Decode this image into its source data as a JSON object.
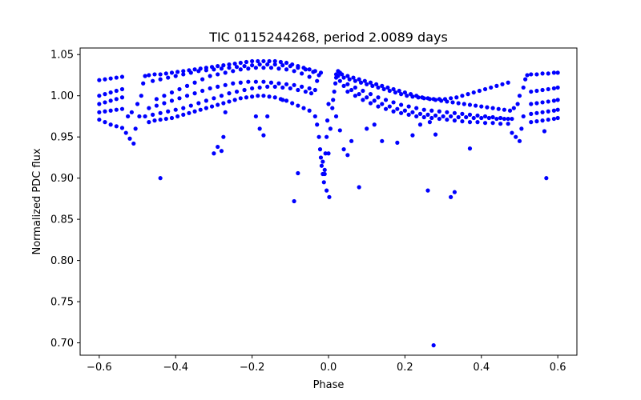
{
  "chart_data": {
    "type": "scatter",
    "title": "TIC 0115244268, period 2.0089 days",
    "xlabel": "Phase",
    "ylabel": "Normalized PDC flux",
    "xlim": [
      -0.65,
      0.65
    ],
    "ylim": [
      0.685,
      1.058
    ],
    "xticks": [
      -0.6,
      -0.4,
      -0.2,
      0.0,
      0.2,
      0.4,
      0.6
    ],
    "xtick_labels": [
      "−0.6",
      "−0.4",
      "−0.2",
      "0.0",
      "0.2",
      "0.4",
      "0.6"
    ],
    "yticks": [
      0.7,
      0.75,
      0.8,
      0.85,
      0.9,
      0.95,
      1.0,
      1.05
    ],
    "ytick_labels": [
      "0.70",
      "0.75",
      "0.80",
      "0.85",
      "0.90",
      "0.95",
      "1.00",
      "1.05"
    ],
    "grid": false,
    "marker_color": "#0000ff",
    "series": [
      {
        "x": [
          -0.6,
          -0.585,
          -0.57,
          -0.555,
          -0.54,
          -0.6,
          -0.585,
          -0.57,
          -0.555,
          -0.54,
          -0.6,
          -0.585,
          -0.57,
          -0.555,
          -0.54,
          -0.6,
          -0.585,
          -0.57,
          -0.555,
          -0.54,
          -0.6,
          -0.585,
          -0.57,
          -0.555,
          -0.54,
          -0.53,
          -0.52,
          -0.51,
          -0.505,
          -0.495,
          -0.525,
          -0.515,
          -0.5,
          -0.49,
          -0.485,
          -0.48,
          -0.47,
          -0.455,
          -0.44,
          -0.425,
          -0.41,
          -0.395,
          -0.38,
          -0.365,
          -0.35,
          -0.335,
          -0.32,
          -0.305,
          -0.29,
          -0.275,
          -0.26,
          -0.245,
          -0.23,
          -0.215,
          -0.2,
          -0.185,
          -0.17,
          -0.155,
          -0.14,
          -0.125,
          -0.11,
          -0.095,
          -0.08,
          -0.065,
          -0.05,
          -0.035,
          -0.02,
          -0.46,
          -0.44,
          -0.42,
          -0.4,
          -0.38,
          -0.36,
          -0.34,
          -0.32,
          -0.3,
          -0.28,
          -0.26,
          -0.24,
          -0.22,
          -0.2,
          -0.18,
          -0.16,
          -0.14,
          -0.12,
          -0.1,
          -0.08,
          -0.06,
          -0.04,
          -0.025,
          -0.45,
          -0.43,
          -0.41,
          -0.39,
          -0.37,
          -0.35,
          -0.33,
          -0.31,
          -0.29,
          -0.27,
          -0.25,
          -0.23,
          -0.21,
          -0.19,
          -0.17,
          -0.15,
          -0.13,
          -0.11,
          -0.09,
          -0.07,
          -0.05,
          -0.03,
          -0.47,
          -0.45,
          -0.43,
          -0.41,
          -0.39,
          -0.37,
          -0.35,
          -0.33,
          -0.31,
          -0.29,
          -0.27,
          -0.25,
          -0.23,
          -0.21,
          -0.19,
          -0.17,
          -0.15,
          -0.13,
          -0.11,
          -0.09,
          -0.07,
          -0.05,
          -0.035,
          -0.48,
          -0.46,
          -0.44,
          -0.42,
          -0.4,
          -0.38,
          -0.36,
          -0.34,
          -0.32,
          -0.3,
          -0.28,
          -0.26,
          -0.24,
          -0.22,
          -0.2,
          -0.18,
          -0.16,
          -0.14,
          -0.12,
          -0.1,
          -0.08,
          -0.06,
          -0.045,
          -0.47,
          -0.455,
          -0.44,
          -0.425,
          -0.41,
          -0.395,
          -0.38,
          -0.365,
          -0.35,
          -0.335,
          -0.32,
          -0.305,
          -0.29,
          -0.275,
          -0.26,
          -0.245,
          -0.23,
          -0.215,
          -0.2,
          -0.185,
          -0.17,
          -0.155,
          -0.14,
          -0.125,
          -0.11,
          -0.095,
          -0.08,
          -0.065,
          -0.05,
          -0.035,
          -0.03,
          -0.025,
          -0.022,
          -0.02,
          -0.018,
          -0.015,
          -0.012,
          -0.01,
          -0.008,
          -0.005,
          -0.003,
          0.0,
          -0.015,
          -0.01,
          -0.005,
          0.002,
          0.0,
          0.005,
          0.01,
          0.012,
          0.015,
          0.018,
          0.02,
          0.025,
          0.03,
          0.02,
          0.035,
          0.05,
          0.065,
          0.08,
          0.095,
          0.11,
          0.125,
          0.14,
          0.155,
          0.17,
          0.185,
          0.2,
          0.215,
          0.23,
          0.245,
          0.26,
          0.275,
          0.29,
          0.305,
          0.32,
          0.335,
          0.35,
          0.365,
          0.38,
          0.395,
          0.41,
          0.425,
          0.44,
          0.455,
          0.47,
          0.025,
          0.04,
          0.055,
          0.07,
          0.085,
          0.1,
          0.115,
          0.13,
          0.145,
          0.16,
          0.175,
          0.19,
          0.205,
          0.22,
          0.235,
          0.25,
          0.265,
          0.28,
          0.295,
          0.31,
          0.325,
          0.34,
          0.355,
          0.37,
          0.385,
          0.4,
          0.415,
          0.43,
          0.445,
          0.46,
          0.475,
          0.03,
          0.05,
          0.07,
          0.09,
          0.11,
          0.13,
          0.15,
          0.17,
          0.19,
          0.21,
          0.23,
          0.25,
          0.27,
          0.29,
          0.31,
          0.33,
          0.35,
          0.37,
          0.39,
          0.41,
          0.43,
          0.45,
          0.47,
          0.04,
          0.06,
          0.08,
          0.1,
          0.12,
          0.14,
          0.16,
          0.18,
          0.2,
          0.22,
          0.24,
          0.26,
          0.28,
          0.3,
          0.32,
          0.34,
          0.36,
          0.38,
          0.4,
          0.42,
          0.44,
          0.46,
          0.48,
          0.05,
          0.07,
          0.09,
          0.11,
          0.13,
          0.15,
          0.17,
          0.19,
          0.21,
          0.23,
          0.25,
          0.27,
          0.29,
          0.31,
          0.33,
          0.35,
          0.37,
          0.39,
          0.41,
          0.43,
          0.45,
          0.47,
          0.48,
          0.49,
          0.5,
          0.505,
          0.51,
          0.485,
          0.495,
          0.5,
          0.51,
          0.515,
          0.52,
          0.53,
          0.545,
          0.56,
          0.575,
          0.59,
          0.6,
          0.53,
          0.545,
          0.56,
          0.575,
          0.59,
          0.6,
          0.53,
          0.545,
          0.56,
          0.575,
          0.59,
          0.6,
          0.53,
          0.545,
          0.56,
          0.575,
          0.59,
          0.6,
          0.53,
          0.545,
          0.56,
          0.575,
          0.59,
          0.6,
          -0.44,
          -0.3,
          -0.29,
          -0.28,
          -0.275,
          -0.27,
          -0.19,
          -0.18,
          -0.17,
          -0.16,
          -0.12,
          -0.09,
          -0.08,
          0.02,
          0.03,
          0.04,
          0.05,
          0.06,
          0.08,
          0.1,
          0.12,
          0.14,
          0.18,
          0.22,
          0.24,
          0.26,
          0.265,
          0.275,
          0.28,
          0.32,
          0.33,
          0.37,
          0.565,
          0.57
        ],
        "y": [
          1.019,
          1.02,
          1.021,
          1.022,
          1.023,
          1.0,
          1.002,
          1.004,
          1.006,
          1.008,
          0.99,
          0.992,
          0.994,
          0.996,
          0.998,
          0.98,
          0.981,
          0.982,
          0.983,
          0.984,
          0.971,
          0.968,
          0.965,
          0.963,
          0.961,
          0.955,
          0.948,
          0.942,
          0.96,
          0.975,
          0.975,
          0.98,
          0.99,
          1.0,
          1.015,
          1.024,
          1.025,
          1.026,
          1.026,
          1.027,
          1.028,
          1.029,
          1.03,
          1.031,
          1.032,
          1.033,
          1.034,
          1.035,
          1.036,
          1.037,
          1.038,
          1.039,
          1.04,
          1.041,
          1.042,
          1.042,
          1.042,
          1.042,
          1.042,
          1.041,
          1.04,
          1.038,
          1.036,
          1.034,
          1.032,
          1.03,
          1.028,
          1.018,
          1.02,
          1.022,
          1.024,
          1.026,
          1.028,
          1.03,
          1.031,
          1.032,
          1.033,
          1.034,
          1.035,
          1.036,
          1.037,
          1.038,
          1.038,
          1.038,
          1.037,
          1.036,
          1.034,
          1.032,
          1.029,
          1.025,
          0.996,
          1.0,
          1.004,
          1.008,
          1.012,
          1.016,
          1.02,
          1.024,
          1.026,
          1.028,
          1.03,
          1.032,
          1.033,
          1.034,
          1.034,
          1.034,
          1.033,
          1.032,
          1.03,
          1.027,
          1.023,
          1.018,
          0.985,
          0.988,
          0.991,
          0.994,
          0.997,
          1.0,
          1.003,
          1.006,
          1.009,
          1.011,
          1.013,
          1.015,
          1.016,
          1.017,
          1.017,
          1.017,
          1.016,
          1.015,
          1.014,
          1.013,
          1.011,
          1.009,
          1.007,
          0.975,
          0.977,
          0.979,
          0.981,
          0.983,
          0.985,
          0.988,
          0.991,
          0.994,
          0.997,
          1.0,
          1.003,
          1.005,
          1.007,
          1.009,
          1.01,
          1.011,
          1.011,
          1.01,
          1.009,
          1.007,
          1.005,
          1.003,
          0.968,
          0.97,
          0.971,
          0.972,
          0.973,
          0.975,
          0.977,
          0.979,
          0.981,
          0.983,
          0.985,
          0.987,
          0.989,
          0.991,
          0.993,
          0.995,
          0.997,
          0.998,
          0.999,
          1.0,
          1.0,
          0.999,
          0.998,
          0.996,
          0.994,
          0.991,
          0.988,
          0.985,
          0.982,
          0.975,
          0.965,
          0.95,
          0.935,
          0.925,
          0.915,
          0.905,
          0.895,
          0.91,
          0.93,
          0.95,
          0.97,
          0.99,
          0.92,
          0.905,
          0.885,
          0.877,
          0.93,
          0.96,
          0.985,
          0.995,
          1.005,
          1.015,
          1.022,
          1.03,
          1.028,
          1.026,
          1.026,
          1.024,
          1.022,
          1.02,
          1.018,
          1.016,
          1.014,
          1.012,
          1.01,
          1.008,
          1.006,
          1.004,
          1.002,
          1.0,
          0.998,
          0.997,
          0.996,
          0.996,
          0.996,
          0.997,
          0.998,
          1.0,
          1.002,
          1.004,
          1.006,
          1.008,
          1.01,
          1.012,
          1.014,
          1.016,
          1.024,
          1.022,
          1.02,
          1.018,
          1.016,
          1.014,
          1.012,
          1.01,
          1.008,
          1.006,
          1.004,
          1.002,
          1.0,
          0.999,
          0.998,
          0.997,
          0.996,
          0.995,
          0.994,
          0.993,
          0.992,
          0.991,
          0.99,
          0.989,
          0.988,
          0.987,
          0.986,
          0.985,
          0.984,
          0.983,
          0.982,
          1.018,
          1.014,
          1.01,
          1.006,
          1.002,
          0.998,
          0.995,
          0.992,
          0.989,
          0.987,
          0.985,
          0.983,
          0.982,
          0.981,
          0.98,
          0.979,
          0.978,
          0.977,
          0.976,
          0.975,
          0.974,
          0.973,
          0.972,
          1.012,
          1.007,
          1.002,
          0.998,
          0.994,
          0.99,
          0.987,
          0.984,
          0.982,
          0.98,
          0.978,
          0.977,
          0.976,
          0.975,
          0.975,
          0.974,
          0.974,
          0.973,
          0.973,
          0.973,
          0.972,
          0.972,
          0.972,
          1.005,
          1.0,
          0.995,
          0.991,
          0.987,
          0.984,
          0.981,
          0.979,
          0.977,
          0.975,
          0.974,
          0.973,
          0.972,
          0.971,
          0.97,
          0.969,
          0.968,
          0.968,
          0.967,
          0.967,
          0.966,
          0.966,
          0.955,
          0.95,
          0.945,
          0.96,
          0.975,
          0.985,
          0.99,
          1.0,
          1.01,
          1.02,
          1.025,
          1.026,
          1.026,
          1.027,
          1.027,
          1.028,
          1.028,
          1.005,
          1.006,
          1.007,
          1.008,
          1.009,
          1.01,
          0.99,
          0.991,
          0.992,
          0.993,
          0.994,
          0.995,
          0.978,
          0.979,
          0.98,
          0.981,
          0.982,
          0.983,
          0.968,
          0.969,
          0.97,
          0.971,
          0.972,
          0.973,
          0.9,
          0.93,
          0.938,
          0.933,
          0.95,
          0.98,
          0.975,
          0.96,
          0.952,
          0.975,
          0.995,
          0.872,
          0.906,
          0.975,
          0.958,
          0.935,
          0.928,
          0.945,
          0.889,
          0.96,
          0.965,
          0.945,
          0.943,
          0.952,
          0.965,
          0.885,
          0.968,
          0.697,
          0.953,
          0.877,
          0.883,
          0.936,
          0.957,
          0.9
        ]
      }
    ]
  }
}
